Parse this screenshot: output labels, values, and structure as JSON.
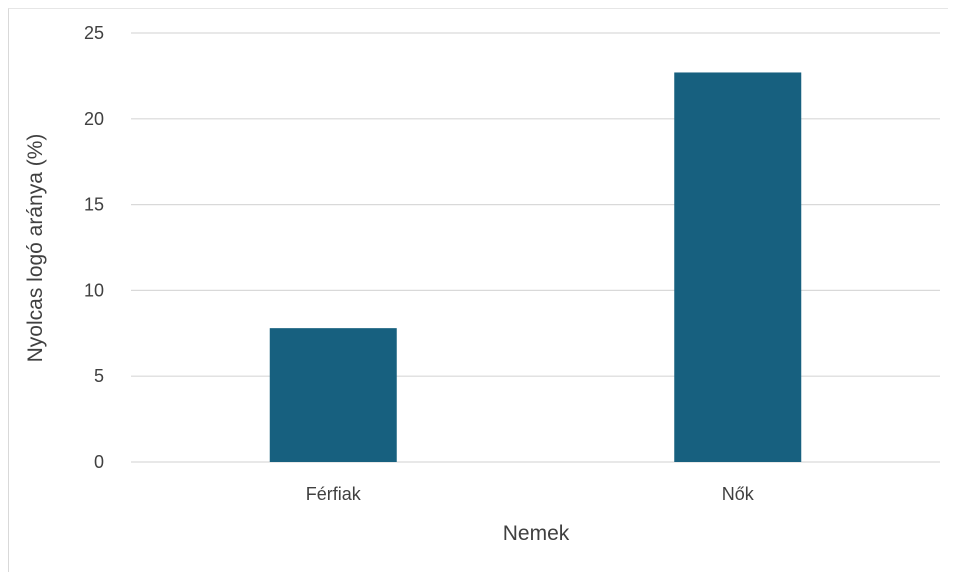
{
  "chart_data": {
    "type": "bar",
    "title": "",
    "xlabel": "Nemek",
    "ylabel": "Nyolcas logó aránya (%)",
    "categories": [
      "Férfiak",
      "Nők"
    ],
    "values": [
      7.8,
      22.7
    ],
    "ylim": [
      0,
      25
    ],
    "yticks": [
      0,
      5,
      10,
      15,
      20,
      25
    ],
    "grid": true,
    "legend": "none",
    "bar_color": "#17607f",
    "grid_color": "#d9d9d9",
    "text_color": "#404040"
  }
}
